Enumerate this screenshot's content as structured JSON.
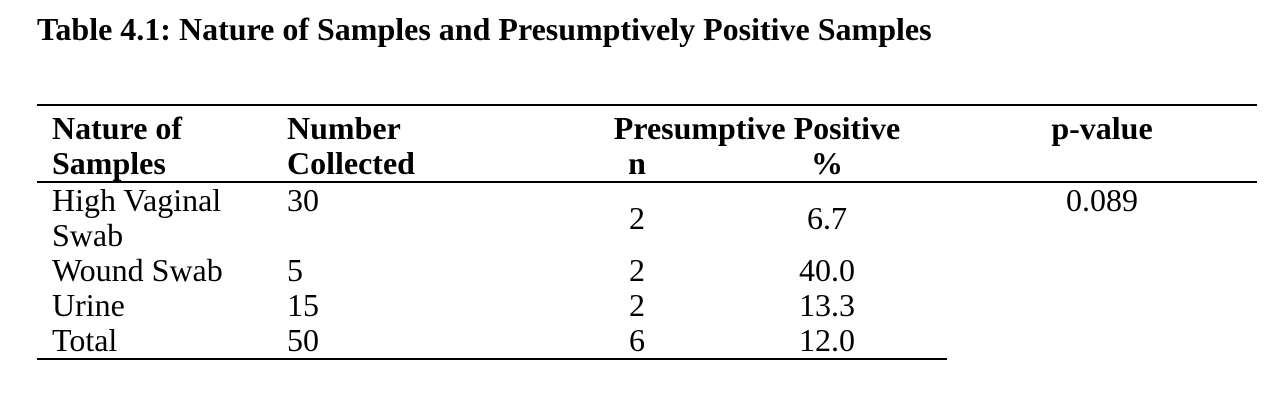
{
  "caption": "Table 4.1: Nature of Samples and Presumptively Positive Samples",
  "table": {
    "columns": {
      "nature": "Nature of\nSamples",
      "collected": "Number\nCollected",
      "group": "Presumptive Positive",
      "n": "n",
      "pct": "%",
      "p": "p-value"
    },
    "rows": [
      {
        "nature": "High Vaginal\nSwab",
        "collected": "30",
        "n": "2",
        "pct": "6.7",
        "p": "0.089"
      },
      {
        "nature": "Wound Swab",
        "collected": "5",
        "n": "2",
        "pct": "40.0",
        "p": ""
      },
      {
        "nature": "Urine",
        "collected": "15",
        "n": "2",
        "pct": "13.3",
        "p": ""
      },
      {
        "nature": "Total",
        "collected": "50",
        "n": "6",
        "pct": "12.0",
        "p": ""
      }
    ]
  },
  "colors": {
    "text": "#000000",
    "background": "#ffffff",
    "rule": "#000000"
  }
}
